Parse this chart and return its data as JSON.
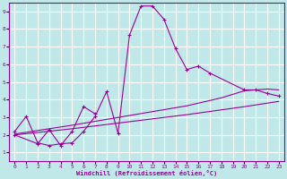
{
  "background_color": "#c0e8e8",
  "grid_color": "#ffffff",
  "line_color": "#990099",
  "xlabel": "Windchill (Refroidissement éolien,°C)",
  "xlim": [
    -0.5,
    23.5
  ],
  "ylim": [
    0.5,
    9.5
  ],
  "xticks": [
    0,
    1,
    2,
    3,
    4,
    5,
    6,
    7,
    8,
    9,
    10,
    11,
    12,
    13,
    14,
    15,
    16,
    17,
    18,
    19,
    20,
    21,
    22,
    23
  ],
  "yticks": [
    1,
    2,
    3,
    4,
    5,
    6,
    7,
    8,
    9
  ],
  "series": [
    {
      "x": [
        0,
        1,
        2,
        3,
        4,
        5,
        6,
        7,
        8,
        9,
        10,
        11,
        12,
        13,
        14,
        15,
        16,
        17,
        20,
        21,
        22,
        23
      ],
      "y": [
        2.2,
        3.05,
        1.55,
        1.4,
        1.5,
        1.55,
        2.2,
        3.05,
        4.45,
        2.1,
        7.65,
        9.3,
        9.3,
        8.55,
        6.9,
        5.7,
        5.9,
        5.5,
        4.55,
        4.55,
        4.35,
        4.2
      ],
      "has_markers": true
    },
    {
      "x": [
        0,
        2,
        3,
        4,
        5,
        6,
        7
      ],
      "y": [
        2.0,
        1.5,
        2.3,
        1.4,
        2.2,
        3.6,
        3.2
      ],
      "has_markers": true
    },
    {
      "x": [
        0,
        5,
        10,
        15,
        18,
        19,
        20,
        21,
        22,
        23
      ],
      "y": [
        2.05,
        2.55,
        3.1,
        3.65,
        4.1,
        4.3,
        4.5,
        4.55,
        4.6,
        4.55
      ],
      "has_markers": false
    },
    {
      "x": [
        0,
        5,
        10,
        15,
        20,
        23
      ],
      "y": [
        2.0,
        2.35,
        2.75,
        3.15,
        3.6,
        3.9
      ],
      "has_markers": false
    }
  ]
}
